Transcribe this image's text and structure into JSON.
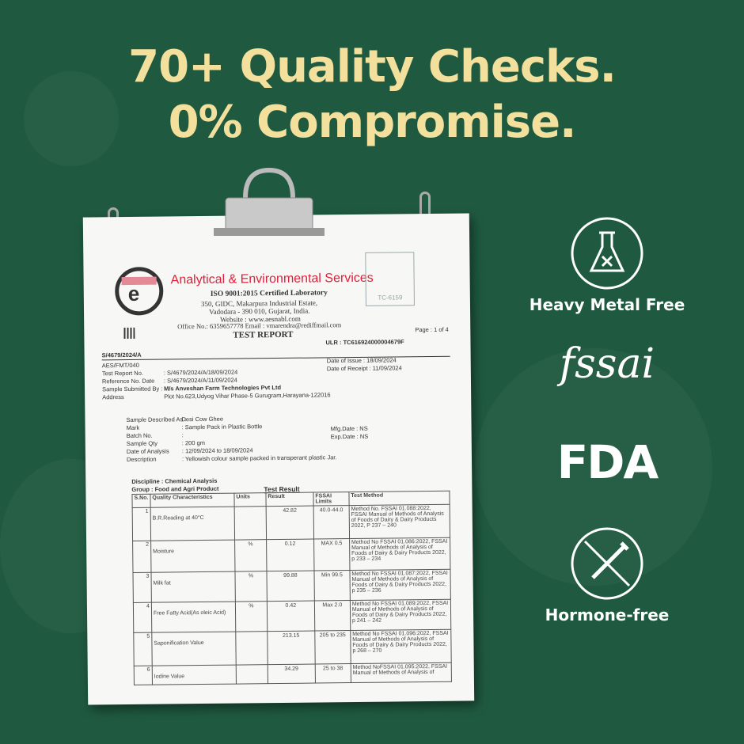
{
  "headline": {
    "line1": "70+ Quality Checks.",
    "line2": "0% Compromise."
  },
  "colors": {
    "background": "#1f5a40",
    "headline": "#f2e09c",
    "lab_red": "#e0203a"
  },
  "report": {
    "lab_name": "Analytical & Environmental Services",
    "certification": "ISO 9001:2015 Certified Laboratory",
    "address1": "350, GIDC, Makarpura Industrial Estate,",
    "address2": "Vadodara - 390 010, Gujarat, India.",
    "website": "Website : www.aesnabl.com",
    "office": "Office No.: 6359657778   Email : vmarendra@rediffmail.com",
    "title": "TEST REPORT",
    "stamp": "TC-6159",
    "page": "Page : 1 of 4",
    "ulr": "ULR : TC616924000004679F",
    "ref": "S/4679/2024/A",
    "form": "AES/FMT/040",
    "fields": [
      {
        "label": "Test Report No.",
        "value": ": S/4679/2024/A/18/09/2024"
      },
      {
        "label": "Reference No. Date",
        "value": ": S/4679/2024/A/11/09/2024"
      },
      {
        "label": "Sample Submitted By :",
        "value": "M/s Anveshan Farm Technologies Pvt Ltd"
      },
      {
        "label": "Address",
        "value": "Plot No.623,Udyog Vihar Phase-5 Gurugram,Harayana-122016"
      }
    ],
    "date_issue": "Date of Issue    : 18/09/2024",
    "date_receipt": "Date of Receipt : 11/09/2024",
    "sample": [
      {
        "label": "Sample Described As :",
        "value": "Desi Cow Ghee"
      },
      {
        "label": "Mark",
        "value": ":   Sample Pack in Plastic Bottle"
      },
      {
        "label": "Batch No.",
        "value": ":"
      },
      {
        "label": "Sample Qty",
        "value": ":   200 gm"
      },
      {
        "label": "Date of Analysis",
        "value": ":   12/09/2024 to 18/09/2024"
      },
      {
        "label": "Description",
        "value": ":   Yellowish colour sample packed in transperant plastic Jar."
      }
    ],
    "mfg": "Mfg.Date        : NS",
    "exp": "Exp.Date        : NS",
    "discipline": "Discipline : Chemical Analysis",
    "group": "Group : Food and Agri Product",
    "table_title": "Test Result",
    "columns": [
      "S.No.",
      "Quality Characteristics",
      "Units",
      "Result",
      "FSSAI Limits",
      "Test Method"
    ],
    "rows": [
      {
        "sno": "1",
        "name": "B.R.Reading at 40°C",
        "unit": "",
        "result": "42.82",
        "limit": "40.0-44.0",
        "method": "Method No. FSSAI 01.088:2022, FSSAI Manual of Methods of Analysis of Foods of Dairy & Dairy Products 2022, P 237 – 240"
      },
      {
        "sno": "2",
        "name": "Moisture",
        "unit": "%",
        "result": "0.12",
        "limit": "MAX 0.5",
        "method": "Method No FSSAI 01.086:2022, FSSAI Manual of Methods of Analysis of Foods of Dairy & Dairy Products 2022, p 233 – 234"
      },
      {
        "sno": "3",
        "name": "Milk fat",
        "unit": "%",
        "result": "99.88",
        "limit": "Min 99.5",
        "method": "Method No FSSAI 01.087:2022, FSSAI Manual of Methods of Analysis of Foods of Dairy & Dairy Products 2022, p 235 – 236"
      },
      {
        "sno": "4",
        "name": "Free Fatty Acid(As oleic Acid)",
        "unit": "%",
        "result": "0.42",
        "limit": "Max 2.0",
        "method": "Method No FSSAI 01.089:2022, FSSAI Manual of Methods of Analysis of Foods of Dairy & Dairy Products 2022, p 241 – 242"
      },
      {
        "sno": "5",
        "name": "Saponification Value",
        "unit": "",
        "result": "213.15",
        "limit": "205 to 235",
        "method": "Method No FSSAI 01.096:2022, FSSAI Manual of Methods of Analysis of Foods of Dairy & Dairy Products 2022, p 268 – 270"
      },
      {
        "sno": "6",
        "name": "Iodine Value",
        "unit": "",
        "result": "34.29",
        "limit": "25 to 38",
        "method": "Method NoFSSAI 01.095:2022, FSSAI Manual of Methods of Analysis of"
      }
    ]
  },
  "badges": [
    {
      "icon": "flask-cross-icon",
      "label": "Heavy Metal Free"
    },
    {
      "icon": "fssai-logo",
      "text": "fssai"
    },
    {
      "icon": "fda-logo",
      "text": "FDA"
    },
    {
      "icon": "no-syringe-icon",
      "label": "Hormone-free"
    }
  ]
}
